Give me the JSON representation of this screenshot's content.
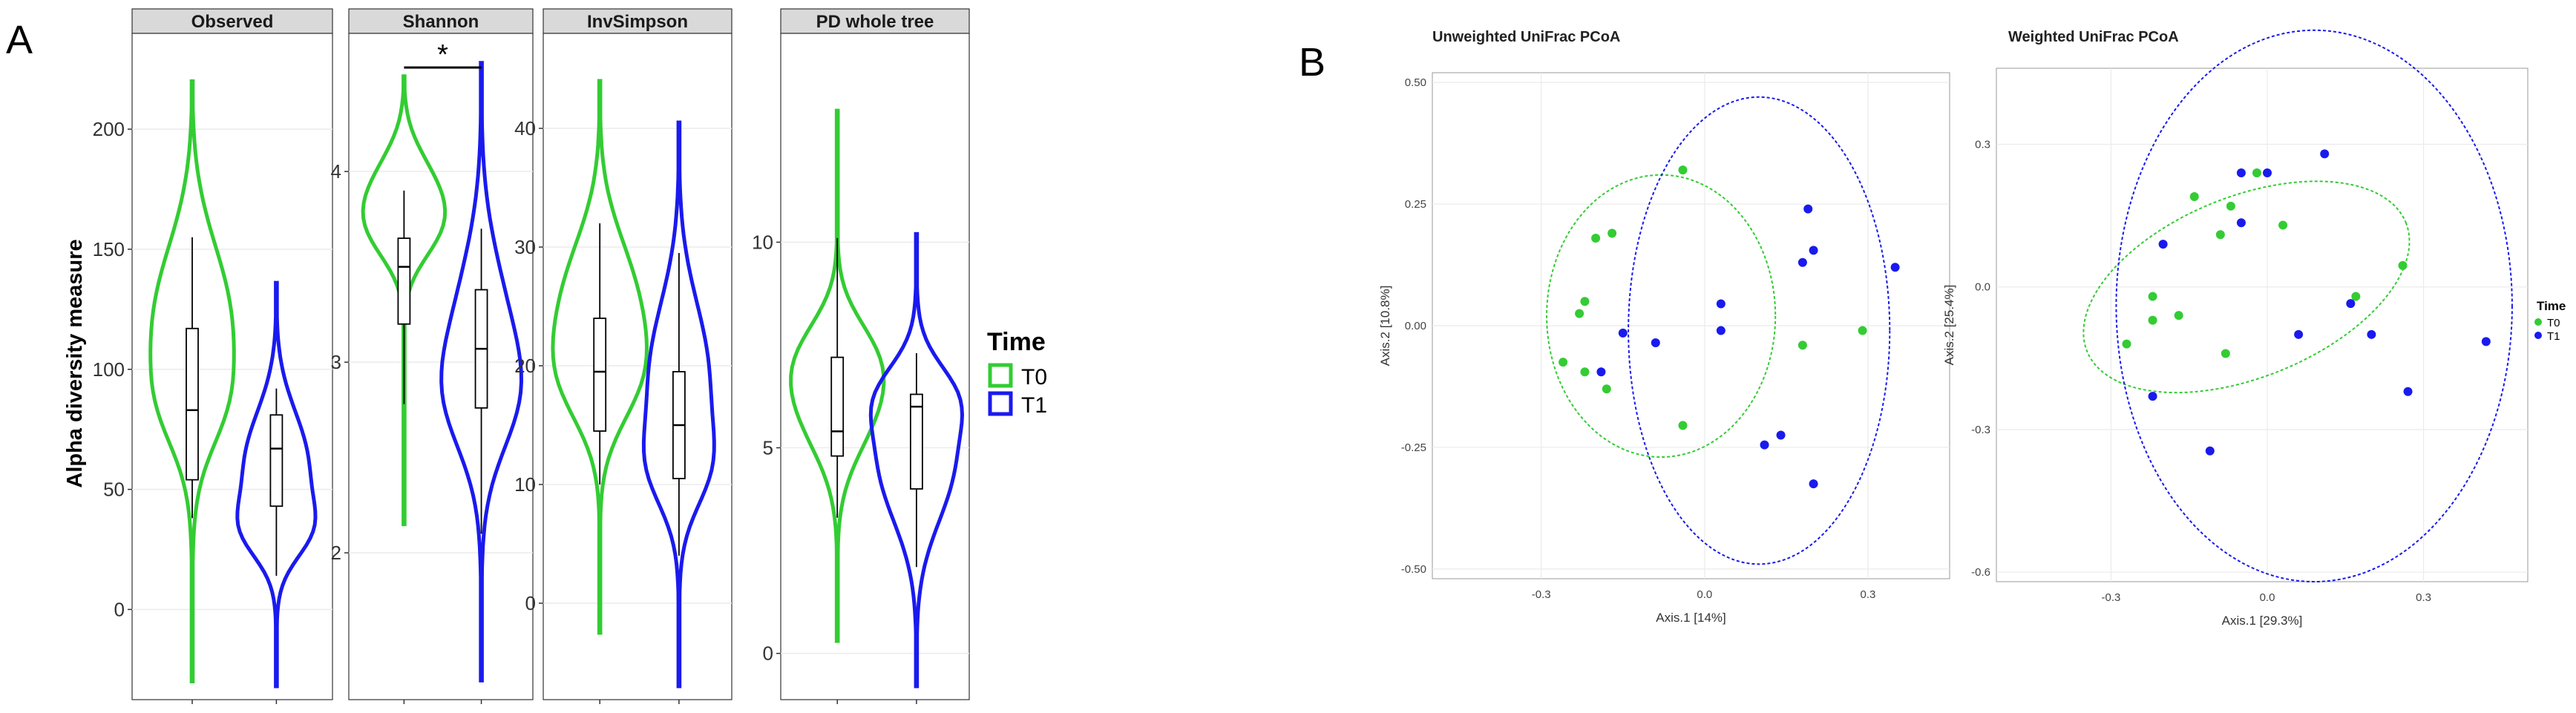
{
  "panel_labels": {
    "a": "A",
    "b": "B"
  },
  "colors": {
    "t0": "#33cc33",
    "t1": "#1a1aee",
    "strip_bg": "#d9d9d9",
    "panel_bg": "#ffffff",
    "grid": "#ebebeb"
  },
  "violin_panel": {
    "ylabel": "Alpha diversity measure",
    "legend": {
      "title": "Time",
      "entries": [
        "T0",
        "T1"
      ]
    },
    "significance": "*"
  },
  "pcoa_panel": {
    "legend": {
      "title": "Time",
      "entries": [
        "T0",
        "T1"
      ]
    }
  },
  "chart_data": [
    {
      "type": "violin",
      "title": "Observed",
      "ylabel": "Alpha diversity measure",
      "groups": [
        "T0",
        "T1"
      ],
      "ylim": [
        -32,
        230
      ],
      "yticks": [
        0,
        50,
        100,
        150,
        200
      ],
      "boxes": {
        "T0": {
          "min": 38,
          "q1": 54,
          "median": 83,
          "q3": 117,
          "max": 155,
          "range": [
            -30,
            220
          ]
        },
        "T1": {
          "min": 14,
          "q1": 43,
          "median": 67,
          "q3": 81,
          "max": 92,
          "range": [
            -32,
            136
          ]
        }
      }
    },
    {
      "type": "violin",
      "title": "Shannon",
      "groups": [
        "T0",
        "T1"
      ],
      "ylim": [
        1.3,
        4.6
      ],
      "yticks": [
        2,
        3,
        4
      ],
      "significance": "*",
      "boxes": {
        "T0": {
          "min": 2.78,
          "q1": 3.2,
          "median": 3.5,
          "q3": 3.65,
          "max": 3.9,
          "range": [
            2.15,
            4.5
          ]
        },
        "T1": {
          "min": 2.1,
          "q1": 2.76,
          "median": 3.07,
          "q3": 3.38,
          "max": 3.7,
          "range": [
            1.33,
            4.57
          ]
        }
      }
    },
    {
      "type": "violin",
      "title": "InvSimpson",
      "groups": [
        "T0",
        "T1"
      ],
      "ylim": [
        -7,
        46
      ],
      "yticks": [
        0,
        10,
        20,
        30,
        40
      ],
      "boxes": {
        "T0": {
          "min": 10,
          "q1": 14.5,
          "median": 19.5,
          "q3": 24,
          "max": 32,
          "range": [
            -2.5,
            44
          ]
        },
        "T1": {
          "min": 4,
          "q1": 10.5,
          "median": 15,
          "q3": 19.5,
          "max": 29.5,
          "range": [
            -7,
            40.5
          ]
        }
      }
    },
    {
      "type": "violin",
      "title": "PD whole tree",
      "groups": [
        "T0",
        "T1"
      ],
      "ylim": [
        -0.8,
        14.5
      ],
      "yticks": [
        0,
        5,
        10
      ],
      "boxes": {
        "T0": {
          "min": 3.3,
          "q1": 4.8,
          "median": 5.4,
          "q3": 7.2,
          "max": 10.1,
          "range": [
            0.3,
            13.2
          ]
        },
        "T1": {
          "min": 2.1,
          "q1": 4.0,
          "median": 6.0,
          "q3": 6.3,
          "max": 7.3,
          "range": [
            -0.8,
            10.2
          ]
        }
      }
    },
    {
      "type": "scatter",
      "title": "Unweighted UniFrac PCoA",
      "xlabel": "Axis.1   [14%]",
      "ylabel": "Axis.2   [10.8%]",
      "xlim": [
        -0.5,
        0.45
      ],
      "ylim": [
        -0.52,
        0.52
      ],
      "xticks": [
        -0.3,
        0.0,
        0.3
      ],
      "xtick_labels": [
        "-0.3",
        "0.0",
        "0.3"
      ],
      "yticks": [
        0.5,
        0.25,
        0.0,
        -0.25,
        -0.5
      ],
      "ytick_labels": [
        "0.50",
        "0.25",
        "0.00",
        "-0.25",
        "-0.50"
      ],
      "series": [
        {
          "name": "T0",
          "points": [
            [
              -0.04,
              0.32
            ],
            [
              -0.17,
              0.19
            ],
            [
              -0.2,
              0.18
            ],
            [
              -0.22,
              0.05
            ],
            [
              -0.23,
              0.025
            ],
            [
              -0.26,
              -0.075
            ],
            [
              -0.22,
              -0.095
            ],
            [
              -0.18,
              -0.13
            ],
            [
              -0.04,
              -0.205
            ],
            [
              0.18,
              -0.04
            ],
            [
              0.29,
              -0.01
            ]
          ]
        },
        {
          "name": "T1",
          "points": [
            [
              0.19,
              0.24
            ],
            [
              0.2,
              0.155
            ],
            [
              0.18,
              0.13
            ],
            [
              0.35,
              0.12
            ],
            [
              0.03,
              0.045
            ],
            [
              0.03,
              -0.01
            ],
            [
              -0.09,
              -0.035
            ],
            [
              -0.15,
              -0.015
            ],
            [
              -0.19,
              -0.095
            ],
            [
              0.14,
              -0.225
            ],
            [
              0.11,
              -0.245
            ],
            [
              0.2,
              -0.325
            ]
          ]
        }
      ],
      "ellipses": [
        {
          "name": "T0",
          "center": [
            -0.08,
            0.02
          ],
          "semi_axes": [
            0.21,
            0.29
          ],
          "angle_deg": 0
        },
        {
          "name": "T1",
          "center": [
            0.1,
            -0.01
          ],
          "semi_axes": [
            0.24,
            0.48
          ],
          "angle_deg": 0
        }
      ]
    },
    {
      "type": "scatter",
      "title": "Weighted UniFrac PCoA",
      "xlabel": "Axis.1   [29.3%]",
      "ylabel": "Axis.2   [25.4%]",
      "xlim": [
        -0.52,
        0.5
      ],
      "ylim": [
        -0.62,
        0.46
      ],
      "xticks": [
        -0.3,
        0.0,
        0.3
      ],
      "xtick_labels": [
        "-0.3",
        "0.0",
        "0.3"
      ],
      "yticks": [
        0.3,
        0.0,
        -0.3,
        -0.6
      ],
      "ytick_labels": [
        "0.3",
        "0.0",
        "-0.3",
        "-0.6"
      ],
      "series": [
        {
          "name": "T0",
          "points": [
            [
              -0.14,
              0.19
            ],
            [
              -0.02,
              0.24
            ],
            [
              0.03,
              0.13
            ],
            [
              -0.07,
              0.17
            ],
            [
              -0.09,
              0.11
            ],
            [
              0.26,
              0.045
            ],
            [
              0.17,
              -0.02
            ],
            [
              -0.22,
              -0.02
            ],
            [
              -0.17,
              -0.06
            ],
            [
              -0.22,
              -0.07
            ],
            [
              -0.27,
              -0.12
            ],
            [
              -0.08,
              -0.14
            ]
          ]
        },
        {
          "name": "T1",
          "points": [
            [
              0.11,
              0.28
            ],
            [
              -0.05,
              0.24
            ],
            [
              0.0,
              0.24
            ],
            [
              -0.05,
              0.135
            ],
            [
              -0.2,
              0.09
            ],
            [
              0.16,
              -0.035
            ],
            [
              0.06,
              -0.1
            ],
            [
              0.2,
              -0.1
            ],
            [
              0.42,
              -0.115
            ],
            [
              0.27,
              -0.22
            ],
            [
              -0.22,
              -0.23
            ],
            [
              -0.11,
              -0.345
            ]
          ]
        }
      ],
      "ellipses": [
        {
          "name": "T0",
          "center": [
            -0.04,
            0.0
          ],
          "semi_axes": [
            0.33,
            0.19
          ],
          "angle_deg": 22
        },
        {
          "name": "T1",
          "center": [
            0.09,
            -0.04
          ],
          "semi_axes": [
            0.38,
            0.58
          ],
          "angle_deg": 0
        }
      ]
    }
  ]
}
